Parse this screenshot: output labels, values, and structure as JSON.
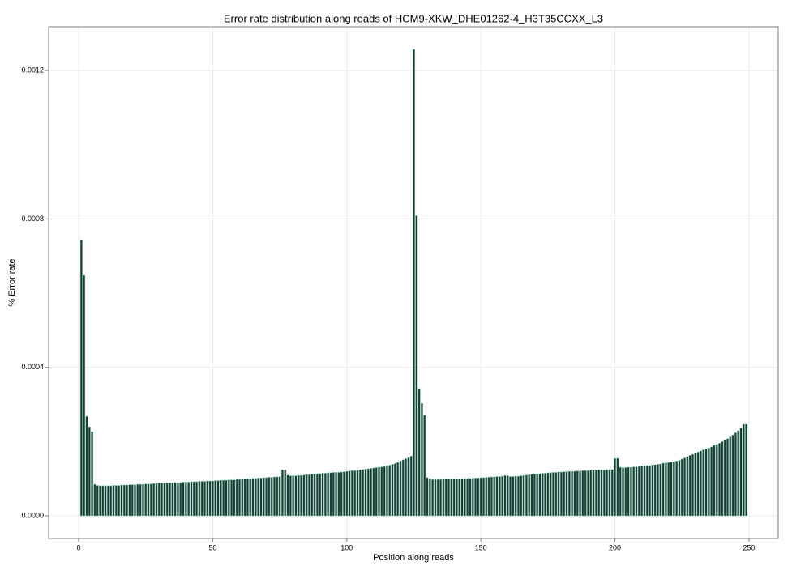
{
  "chart_data": {
    "type": "bar",
    "title": "Error rate distribution along reads of HCM9-XKW_DHE01262-4_H3T35CCXX_L3",
    "x_label": "Position along reads",
    "y_label": "% Error rate",
    "x": [
      1,
      2,
      3,
      4,
      5,
      6,
      7,
      8,
      9,
      10,
      11,
      12,
      13,
      14,
      15,
      16,
      17,
      18,
      19,
      20,
      21,
      22,
      23,
      24,
      25,
      26,
      27,
      28,
      29,
      30,
      31,
      32,
      33,
      34,
      35,
      36,
      37,
      38,
      39,
      40,
      41,
      42,
      43,
      44,
      45,
      46,
      47,
      48,
      49,
      50,
      51,
      52,
      53,
      54,
      55,
      56,
      57,
      58,
      59,
      60,
      61,
      62,
      63,
      64,
      65,
      66,
      67,
      68,
      69,
      70,
      71,
      72,
      73,
      74,
      75,
      76,
      77,
      78,
      79,
      80,
      81,
      82,
      83,
      84,
      85,
      86,
      87,
      88,
      89,
      90,
      91,
      92,
      93,
      94,
      95,
      96,
      97,
      98,
      99,
      100,
      101,
      102,
      103,
      104,
      105,
      106,
      107,
      108,
      109,
      110,
      111,
      112,
      113,
      114,
      115,
      116,
      117,
      118,
      119,
      120,
      121,
      122,
      123,
      124,
      125,
      126,
      127,
      128,
      129,
      130,
      131,
      132,
      133,
      134,
      135,
      136,
      137,
      138,
      139,
      140,
      141,
      142,
      143,
      144,
      145,
      146,
      147,
      148,
      149,
      150,
      151,
      152,
      153,
      154,
      155,
      156,
      157,
      158,
      159,
      160,
      161,
      162,
      163,
      164,
      165,
      166,
      167,
      168,
      169,
      170,
      171,
      172,
      173,
      174,
      175,
      176,
      177,
      178,
      179,
      180,
      181,
      182,
      183,
      184,
      185,
      186,
      187,
      188,
      189,
      190,
      191,
      192,
      193,
      194,
      195,
      196,
      197,
      198,
      199,
      200,
      201,
      202,
      203,
      204,
      205,
      206,
      207,
      208,
      209,
      210,
      211,
      212,
      213,
      214,
      215,
      216,
      217,
      218,
      219,
      220,
      221,
      222,
      223,
      224,
      225,
      226,
      227,
      228,
      229,
      230,
      231,
      232,
      233,
      234,
      235,
      236,
      237,
      238,
      239,
      240,
      241,
      242,
      243,
      244,
      245,
      246,
      247,
      248,
      249
    ],
    "values": [
      0.000744,
      0.000648,
      0.000268,
      0.00024,
      0.000227,
      8.5e-05,
      8.2e-05,
      8.1e-05,
      8.1e-05,
      8.1e-05,
      8.1e-05,
      8.1e-05,
      8.2e-05,
      8.2e-05,
      8.2e-05,
      8.3e-05,
      8.3e-05,
      8.3e-05,
      8.4e-05,
      8.4e-05,
      8.4e-05,
      8.5e-05,
      8.5e-05,
      8.5e-05,
      8.6e-05,
      8.6e-05,
      8.6e-05,
      8.7e-05,
      8.7e-05,
      8.8e-05,
      8.8e-05,
      8.8e-05,
      8.9e-05,
      8.9e-05,
      8.9e-05,
      9e-05,
      9e-05,
      9e-05,
      9.1e-05,
      9.1e-05,
      9.1e-05,
      9.2e-05,
      9.2e-05,
      9.2e-05,
      9.3e-05,
      9.3e-05,
      9.3e-05,
      9.4e-05,
      9.4e-05,
      9.4e-05,
      9.5e-05,
      9.5e-05,
      9.6e-05,
      9.6e-05,
      9.6e-05,
      9.7e-05,
      9.7e-05,
      9.7e-05,
      9.8e-05,
      9.8e-05,
      9.9e-05,
      9.9e-05,
      0.0001,
      0.0001,
      0.000101,
      0.000101,
      0.000102,
      0.000102,
      0.000103,
      0.000103,
      0.000104,
      0.000104,
      0.000105,
      0.000105,
      0.000106,
      0.000124,
      0.000124,
      0.00011,
      0.000108,
      0.000108,
      0.000108,
      0.000109,
      0.000109,
      0.00011,
      0.000111,
      0.000111,
      0.000112,
      0.000113,
      0.000114,
      0.000114,
      0.000115,
      0.000115,
      0.000116,
      0.000116,
      0.000117,
      0.000117,
      0.000117,
      0.000118,
      0.000119,
      0.00012,
      0.000121,
      0.000122,
      0.000122,
      0.000123,
      0.000124,
      0.000125,
      0.000126,
      0.000127,
      0.000128,
      0.000129,
      0.00013,
      0.000131,
      0.000132,
      0.000133,
      0.000135,
      0.000137,
      0.000139,
      0.000141,
      0.000144,
      0.000148,
      0.000151,
      0.000154,
      0.000157,
      0.000161,
      0.001257,
      0.000809,
      0.000343,
      0.000303,
      0.000271,
      0.000103,
      0.0001,
      9.8e-05,
      9.8e-05,
      9.8e-05,
      9.8e-05,
      9.9e-05,
      9.9e-05,
      9.9e-05,
      9.9e-05,
      9.9e-05,
      9.9e-05,
      0.0001,
      0.0001,
      0.0001,
      0.000101,
      0.000101,
      0.000101,
      0.000102,
      0.000102,
      0.000103,
      0.000103,
      0.000104,
      0.000104,
      0.000105,
      0.000105,
      0.000106,
      0.000106,
      0.000107,
      0.000109,
      0.000108,
      0.000106,
      0.000106,
      0.000107,
      0.000107,
      0.000108,
      0.000109,
      0.00011,
      0.000111,
      0.000112,
      0.000113,
      0.000114,
      0.000114,
      0.000115,
      0.000115,
      0.000116,
      0.000116,
      0.000117,
      0.000117,
      0.000118,
      0.000118,
      0.000119,
      0.000119,
      0.00012,
      0.00012,
      0.00012,
      0.000121,
      0.000121,
      0.000122,
      0.000122,
      0.000122,
      0.000123,
      0.000123,
      0.000123,
      0.000124,
      0.000124,
      0.000124,
      0.000125,
      0.000125,
      0.000125,
      0.000155,
      0.000155,
      0.000131,
      0.00013,
      0.00013,
      0.000131,
      0.000131,
      0.000132,
      0.000132,
      0.000133,
      0.000134,
      0.000135,
      0.000136,
      0.000136,
      0.000137,
      0.000138,
      0.000139,
      0.00014,
      0.000142,
      0.000143,
      0.000144,
      0.000145,
      0.000146,
      0.000148,
      0.00015,
      0.000153,
      0.000156,
      0.00016,
      0.000163,
      0.000166,
      0.000169,
      0.000172,
      0.000175,
      0.000178,
      0.00018,
      0.000183,
      0.000186,
      0.00019,
      0.000193,
      0.000196,
      0.0002,
      0.000204,
      0.000208,
      0.000213,
      0.000218,
      0.000224,
      0.00023,
      0.000237,
      0.000247,
      0.000247
    ],
    "color": "#1c3a33",
    "edge_color": "#9fd8c6",
    "xlim": [
      -11.2,
      260.9
    ],
    "xticks": [
      0,
      50,
      100,
      150,
      200,
      250
    ],
    "ylim": [
      -6.1e-05,
      0.001318
    ],
    "yticks": [
      {
        "value": 0,
        "label": "0.0000"
      },
      0.0004,
      0.0008,
      0.0012
    ],
    "grid": true
  }
}
